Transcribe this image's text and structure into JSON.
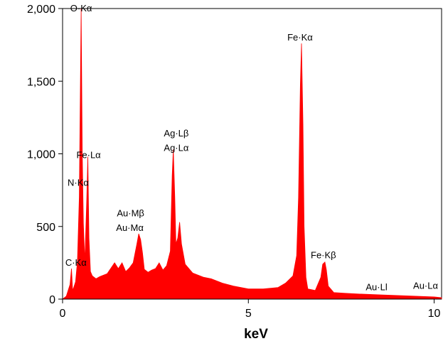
{
  "chart_data": {
    "type": "area",
    "title": "",
    "xlabel": "keV",
    "ylabel": "",
    "xlim": [
      0,
      10.2
    ],
    "ylim": [
      0,
      2000
    ],
    "x_ticks": [
      0,
      5,
      10
    ],
    "x_tick_labels": [
      "0",
      "5",
      "10"
    ],
    "y_ticks": [
      0,
      500,
      1000,
      1500,
      2000
    ],
    "y_tick_labels": [
      "0",
      "500",
      "1,000",
      "1,500",
      "2,000"
    ],
    "grid": false,
    "legend": "none",
    "fill_color": "#ff0000",
    "series": [
      {
        "x": [
          0.0,
          0.1,
          0.15,
          0.2,
          0.24,
          0.27,
          0.3,
          0.35,
          0.4,
          0.45,
          0.5,
          0.53,
          0.56,
          0.6,
          0.65,
          0.68,
          0.71,
          0.75,
          0.8,
          0.9,
          1.0,
          1.2,
          1.4,
          1.5,
          1.6,
          1.7,
          1.8,
          1.9,
          2.0,
          2.05,
          2.1,
          2.15,
          2.2,
          2.3,
          2.4,
          2.5,
          2.6,
          2.7,
          2.8,
          2.9,
          2.95,
          2.98,
          3.02,
          3.05,
          3.1,
          3.15,
          3.2,
          3.3,
          3.5,
          3.8,
          4.0,
          4.3,
          4.6,
          5.0,
          5.4,
          5.8,
          6.0,
          6.2,
          6.3,
          6.35,
          6.4,
          6.43,
          6.47,
          6.5,
          6.55,
          6.6,
          6.8,
          6.95,
          7.0,
          7.06,
          7.1,
          7.15,
          7.3,
          7.6,
          8.0,
          8.5,
          9.0,
          9.5,
          10.0,
          10.2
        ],
        "y": [
          0,
          20,
          60,
          100,
          210,
          60,
          80,
          120,
          260,
          700,
          2000,
          1000,
          520,
          260,
          680,
          980,
          420,
          190,
          160,
          140,
          155,
          175,
          250,
          210,
          250,
          190,
          215,
          250,
          380,
          450,
          410,
          320,
          205,
          185,
          200,
          210,
          250,
          200,
          230,
          330,
          850,
          1030,
          700,
          380,
          420,
          530,
          380,
          240,
          180,
          150,
          140,
          110,
          90,
          70,
          70,
          80,
          110,
          160,
          300,
          700,
          1480,
          1760,
          1200,
          500,
          150,
          70,
          60,
          150,
          240,
          255,
          200,
          90,
          45,
          40,
          35,
          30,
          25,
          20,
          15,
          10
        ]
      }
    ],
    "annotations": [
      {
        "text": "O·Kα",
        "x": 0.5,
        "y": 2000
      },
      {
        "text": "Fe·Lα",
        "x": 0.7,
        "y": 990
      },
      {
        "text": "N·Kα",
        "x": 0.42,
        "y": 800
      },
      {
        "text": "C·Kα",
        "x": 0.36,
        "y": 250
      },
      {
        "text": "Au·Mβ",
        "x": 1.83,
        "y": 590
      },
      {
        "text": "Au·Mα",
        "x": 1.81,
        "y": 490
      },
      {
        "text": "Ag·Lβ",
        "x": 3.06,
        "y": 1140
      },
      {
        "text": "Ag·Lα",
        "x": 3.06,
        "y": 1040
      },
      {
        "text": "Fe·Kα",
        "x": 6.39,
        "y": 1800
      },
      {
        "text": "Fe·Kβ",
        "x": 7.02,
        "y": 300
      },
      {
        "text": "Au·Ll",
        "x": 8.45,
        "y": 80
      },
      {
        "text": "Au·Lα",
        "x": 9.77,
        "y": 90
      }
    ]
  }
}
